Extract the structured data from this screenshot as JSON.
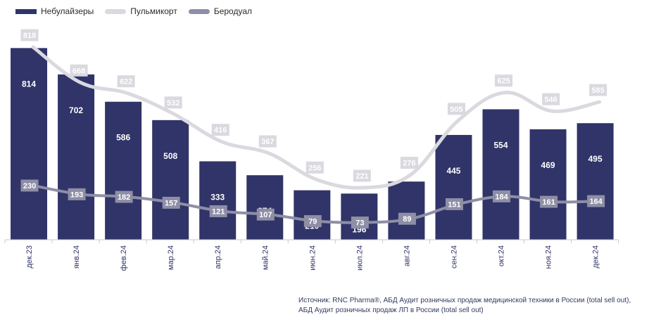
{
  "legend": {
    "bar_label": "Небулайзеры",
    "line1_label": "Пульмикорт",
    "line2_label": "Беродуал"
  },
  "colors": {
    "bar": "#303468",
    "pulmicort": "#d9d9df",
    "berodual": "#8e8ea6",
    "bar_label_text": "#ffffff",
    "axis_text": "#303468"
  },
  "chart_data": {
    "type": "bar",
    "categories": [
      "дек.23",
      "янв.24",
      "фев.24",
      "мар.24",
      "апр.24",
      "май.24",
      "июн.24",
      "июл.24",
      "авг.24",
      "сен.24",
      "окт.24",
      "ноя.24",
      "дек.24"
    ],
    "series": [
      {
        "name": "Небулайзеры",
        "type": "bar",
        "values": [
          814,
          702,
          586,
          508,
          333,
          274,
          210,
          196,
          247,
          445,
          554,
          469,
          495
        ]
      },
      {
        "name": "Пульмикорт",
        "type": "line",
        "values": [
          818,
          668,
          622,
          532,
          416,
          367,
          256,
          221,
          276,
          505,
          625,
          546,
          585
        ]
      },
      {
        "name": "Беродуал",
        "type": "line",
        "values": [
          230,
          193,
          182,
          157,
          121,
          107,
          79,
          73,
          89,
          151,
          184,
          161,
          164
        ]
      }
    ],
    "ylim": [
      0,
      860
    ],
    "title": "",
    "xlabel": "",
    "ylabel": ""
  },
  "source": {
    "line1": "Источник: RNC Pharma®, АБД Аудит розничных продаж медицинской техники в России (total sell out),",
    "line2": "АБД Аудит розничных продаж ЛП в России (total sell out)"
  }
}
